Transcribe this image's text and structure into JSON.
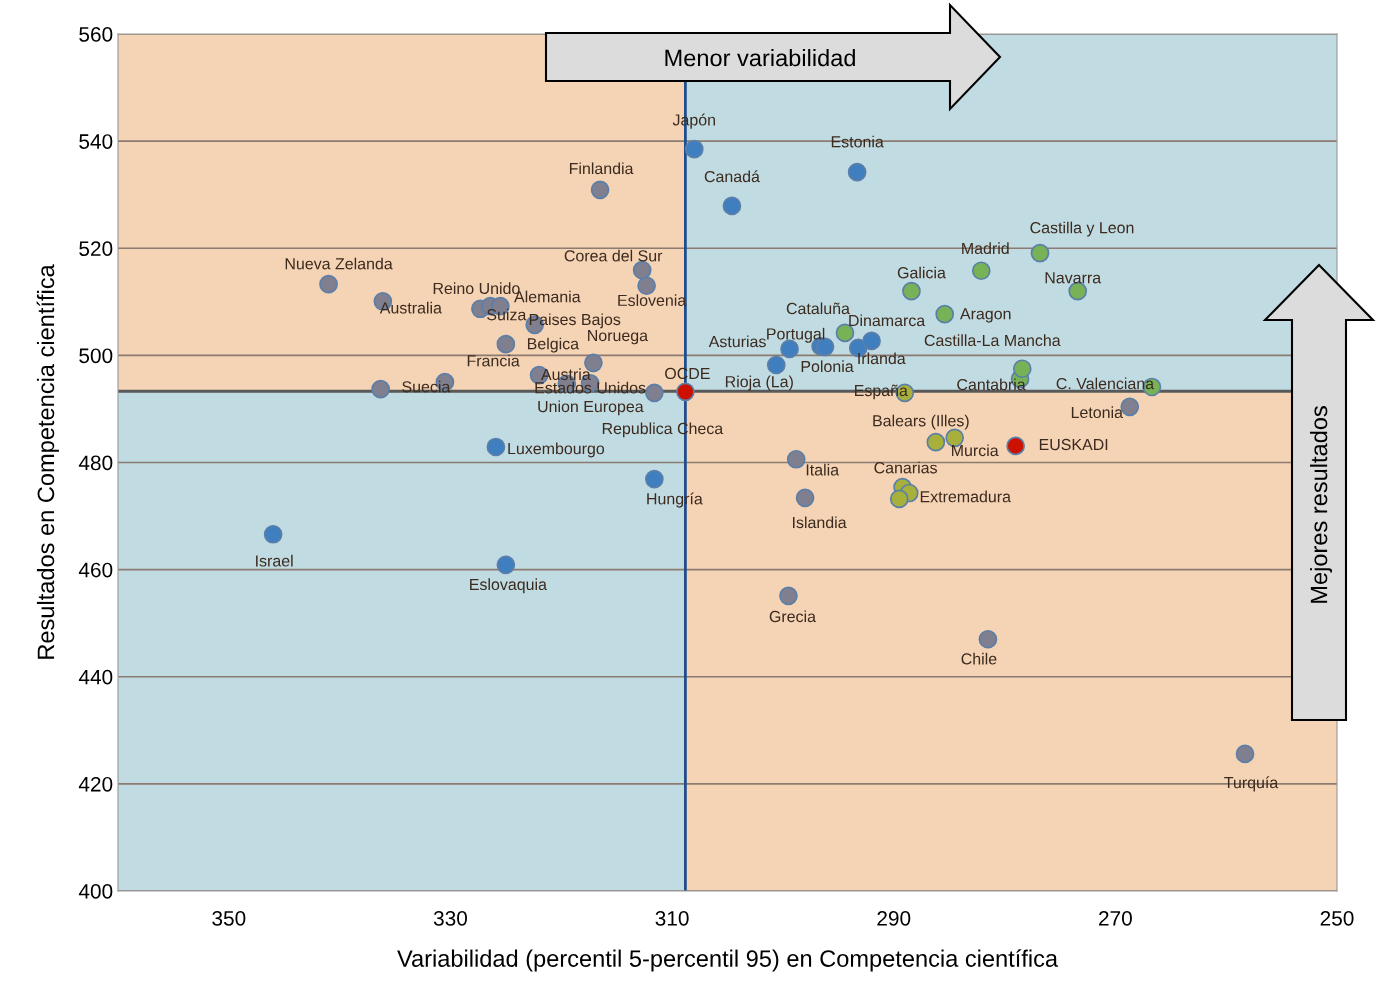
{
  "chart_data": {
    "type": "scatter",
    "xlabel": "Variabilidad (percentil 5-percentil 95) en Competencia científica",
    "ylabel": "Resultados en Competencia científica",
    "xlim": [
      360,
      250
    ],
    "xticks": [
      350,
      330,
      310,
      290,
      270,
      250
    ],
    "ylim": [
      400,
      560
    ],
    "yticks": [
      400,
      420,
      440,
      460,
      480,
      500,
      520,
      540,
      560
    ],
    "grid": "y",
    "marker": "circle",
    "legend": false,
    "ref_lines": [
      {
        "axis": "x",
        "value": 308.8,
        "color": "#1f4e8c"
      },
      {
        "axis": "y",
        "value": 493.3,
        "color": "#595959"
      }
    ],
    "series": [
      {
        "color": "#7f7f8f",
        "x": [
          316.5,
          341.0,
          336.1,
          327.3,
          326.4,
          325.5,
          322.4,
          325.0,
          322.0,
          317.1,
          319.5,
          317.4,
          330.5,
          336.3,
          311.6,
          312.7,
          312.3,
          298.8,
          298.0,
          299.5,
          281.5,
          258.3,
          268.7
        ],
        "values": [
          530.9,
          513.3,
          510.1,
          508.7,
          509.2,
          509.2,
          505.7,
          502.1,
          496.3,
          498.6,
          494.7,
          494.8,
          495.0,
          493.7,
          493.0,
          515.9,
          513.0,
          480.6,
          473.4,
          455.1,
          447.0,
          425.6,
          490.4
        ]
      },
      {
        "color": "#3f7fbf",
        "x": [
          308.0,
          293.3,
          304.6,
          325.9,
          311.6,
          346.0,
          325.0,
          300.6,
          299.4,
          296.6,
          296.2,
          293.2,
          292.0
        ],
        "values": [
          538.5,
          534.2,
          527.9,
          482.9,
          476.9,
          466.6,
          460.9,
          498.2,
          501.2,
          501.7,
          501.6,
          501.4,
          502.7
        ]
      },
      {
        "color": "#77b256",
        "x": [
          276.8,
          282.1,
          288.4,
          273.4,
          285.4,
          294.4,
          278.6,
          278.4,
          266.7
        ],
        "values": [
          519.1,
          515.8,
          512.0,
          512.0,
          507.7,
          504.2,
          495.6,
          497.5,
          494.1
        ]
      },
      {
        "color": "#a8b03c",
        "x": [
          289.0,
          286.2,
          284.5,
          289.2,
          288.6,
          289.5
        ],
        "values": [
          493.0,
          483.8,
          484.6,
          475.4,
          474.3,
          473.2
        ]
      },
      {
        "color": "#cc1100",
        "x": [
          308.8,
          279.0
        ],
        "values": [
          493.2,
          483.1
        ]
      }
    ],
    "annotations": [
      "Menor variabilidad",
      "Mejores resultados",
      {
        "text": "Finlandia",
        "x": 316.5,
        "y": 530.9
      },
      {
        "text": "Japón",
        "x": 308.0,
        "y": 538.5
      },
      {
        "text": "Estonia",
        "x": 293.3,
        "y": 534.2
      },
      {
        "text": "Canadá",
        "x": 304.6,
        "y": 527.9
      },
      {
        "text": "Nueva Zelanda",
        "x": 341.0,
        "y": 513.3
      },
      {
        "text": "Corea del Sur",
        "x": 312.7,
        "y": 515.9
      },
      {
        "text": "Reino Unido",
        "x": 327.3,
        "y": 508.7
      },
      {
        "text": "Alemania",
        "x": 325.5,
        "y": 509.2
      },
      {
        "text": "Eslovenia",
        "x": 312.3,
        "y": 513.0
      },
      {
        "text": "Australia",
        "x": 336.1,
        "y": 510.1
      },
      {
        "text": "Suiza",
        "x": 326.4,
        "y": 509.2
      },
      {
        "text": "Paises Bajos",
        "x": 322.4,
        "y": 505.7
      },
      {
        "text": "Noruega",
        "x": 317.1,
        "y": 498.6
      },
      {
        "text": "Belgica",
        "x": 325.0,
        "y": 502.1
      },
      {
        "text": "Francia",
        "x": 322.0,
        "y": 496.3
      },
      {
        "text": "Austria",
        "x": 319.5,
        "y": 494.7
      },
      {
        "text": "Suecia",
        "x": 330.5,
        "y": 495.0
      },
      {
        "text": "Estados Unidos",
        "x": 317.4,
        "y": 494.8
      },
      {
        "text": "Union Europea",
        "x": 311.6,
        "y": 493.0
      },
      {
        "text": "Republica Checa",
        "x": 311.6,
        "y": 493.0
      },
      {
        "text": "Luxembourgo",
        "x": 325.9,
        "y": 482.9
      },
      {
        "text": "Hungría",
        "x": 311.6,
        "y": 476.9
      },
      {
        "text": "Israel",
        "x": 346.0,
        "y": 466.6
      },
      {
        "text": "Eslovaquia",
        "x": 325.0,
        "y": 460.9
      },
      {
        "text": "OCDE",
        "x": 308.8,
        "y": 493.2
      },
      {
        "text": "Asturias",
        "x": 299.4,
        "y": 501.2
      },
      {
        "text": "Portugal",
        "x": 296.6,
        "y": 501.7
      },
      {
        "text": "Cataluña",
        "x": 294.4,
        "y": 504.2
      },
      {
        "text": "Dinamarca",
        "x": 292.0,
        "y": 502.7
      },
      {
        "text": "Irlanda",
        "x": 293.2,
        "y": 501.4
      },
      {
        "text": "Polonia",
        "x": 296.2,
        "y": 501.6
      },
      {
        "text": "Rioja (La)",
        "x": 300.6,
        "y": 498.2
      },
      {
        "text": "Galicia",
        "x": 288.4,
        "y": 512.0
      },
      {
        "text": "Madrid",
        "x": 282.1,
        "y": 515.8
      },
      {
        "text": "Castilla y Leon",
        "x": 276.8,
        "y": 519.1
      },
      {
        "text": "Navarra",
        "x": 273.4,
        "y": 512.0
      },
      {
        "text": "Aragon",
        "x": 285.4,
        "y": 507.7
      },
      {
        "text": "Castilla-La Mancha",
        "x": 278.4,
        "y": 497.5
      },
      {
        "text": "Cantabria",
        "x": 278.6,
        "y": 495.6
      },
      {
        "text": "C. Valenciana",
        "x": 266.7,
        "y": 494.1
      },
      {
        "text": "España",
        "x": 289.0,
        "y": 493.0
      },
      {
        "text": "Letonia",
        "x": 268.7,
        "y": 490.4
      },
      {
        "text": "Balears (Illes)",
        "x": 286.2,
        "y": 483.8
      },
      {
        "text": "Murcia",
        "x": 284.5,
        "y": 484.6
      },
      {
        "text": "EUSKADI",
        "x": 279.0,
        "y": 483.1
      },
      {
        "text": "Italia",
        "x": 298.8,
        "y": 480.6
      },
      {
        "text": "Canarias",
        "x": 289.2,
        "y": 475.4
      },
      {
        "text": "Extremadura",
        "x": 288.6,
        "y": 474.3
      },
      {
        "text": "Islandia",
        "x": 298.0,
        "y": 473.4
      },
      {
        "text": "Grecia",
        "x": 299.5,
        "y": 455.1
      },
      {
        "text": "Chile",
        "x": 281.5,
        "y": 447.0
      },
      {
        "text": "Turquía",
        "x": 258.3,
        "y": 425.6
      }
    ]
  }
}
